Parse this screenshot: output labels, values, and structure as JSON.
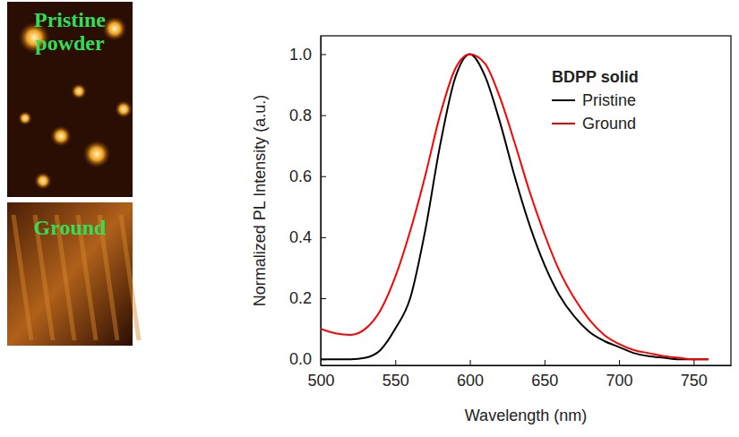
{
  "chart_data": {
    "type": "line",
    "x_label": "Wavelength (nm)",
    "y_label": "Normalized PL Intensity (a.u.)",
    "legend_title": "BDPP solid",
    "annotations": [
      "Pristine powder",
      "Ground"
    ],
    "x": [
      500,
      510,
      520,
      530,
      540,
      550,
      560,
      570,
      580,
      590,
      600,
      610,
      620,
      630,
      640,
      650,
      660,
      670,
      680,
      690,
      700,
      710,
      720,
      730,
      740,
      750,
      760
    ],
    "series": [
      {
        "name": "Pristine",
        "color": "#000000",
        "values": [
          0,
          0,
          0,
          0.005,
          0.03,
          0.1,
          0.2,
          0.42,
          0.7,
          0.92,
          1.0,
          0.93,
          0.78,
          0.6,
          0.44,
          0.31,
          0.21,
          0.14,
          0.09,
          0.06,
          0.04,
          0.02,
          0.01,
          0.005,
          0,
          0,
          0
        ]
      },
      {
        "name": "Ground",
        "color": "#ff0000",
        "values": [
          0.1,
          0.085,
          0.08,
          0.1,
          0.16,
          0.27,
          0.42,
          0.6,
          0.8,
          0.95,
          1.0,
          0.97,
          0.86,
          0.71,
          0.55,
          0.41,
          0.29,
          0.2,
          0.13,
          0.08,
          0.05,
          0.03,
          0.02,
          0.01,
          0.005,
          0,
          0
        ]
      }
    ],
    "xlim": [
      500,
      775
    ],
    "xticks": [
      500,
      550,
      600,
      650,
      700,
      750
    ],
    "ylim": [
      -0.02,
      1.06
    ],
    "yticks": [
      {
        "value": 0,
        "label": "0.0"
      },
      0.2,
      0.4,
      0.6,
      0.8,
      {
        "value": 1,
        "label": "1.0"
      }
    ],
    "legend": "upper right",
    "grid": false
  }
}
